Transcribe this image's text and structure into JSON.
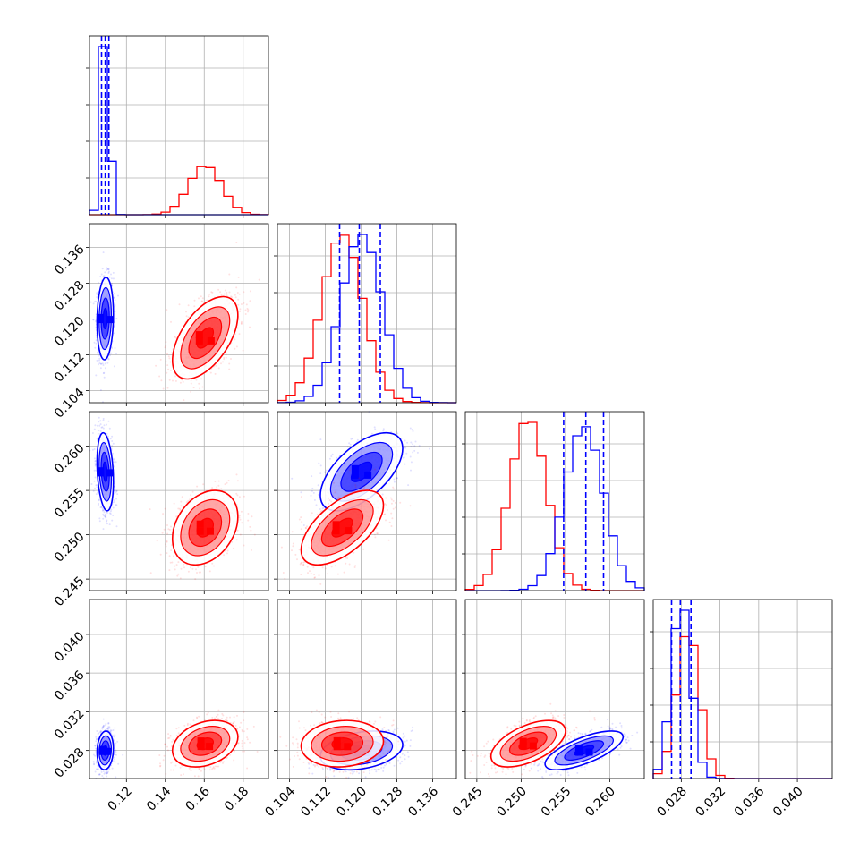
{
  "chart_data": {
    "type": "corner",
    "grid": true,
    "parameters": [
      {
        "ticks": [
          0.12,
          0.14,
          0.16,
          0.18
        ],
        "tick_labels": [
          "0.12",
          "0.14",
          "0.16",
          "0.18"
        ],
        "range": [
          0.101,
          0.193
        ]
      },
      {
        "ticks": [
          0.104,
          0.112,
          0.12,
          0.128,
          0.136
        ],
        "tick_labels": [
          "0.104",
          "0.112",
          "0.120",
          "0.128",
          "0.136"
        ],
        "range": [
          0.1013,
          0.1413
        ]
      },
      {
        "ticks": [
          0.245,
          0.25,
          0.255,
          0.26
        ],
        "tick_labels": [
          "0.245",
          "0.250",
          "0.255",
          "0.260"
        ],
        "range": [
          0.2437,
          0.2639
        ]
      },
      {
        "ticks": [
          0.028,
          0.032,
          0.036,
          0.04
        ],
        "tick_labels": [
          "0.028",
          "0.032",
          "0.036",
          "0.040"
        ],
        "range": [
          0.0251,
          0.0436
        ]
      }
    ],
    "series": [
      {
        "color": "#0000ff",
        "means": [
          0.1091,
          0.1201,
          0.2571,
          0.028
        ],
        "stds": [
          0.0021,
          0.0046,
          0.0022,
          0.001
        ],
        "correlations": [
          [
            0,
            1,
            0.1
          ],
          [
            0,
            2,
            -0.25
          ],
          [
            0,
            3,
            0.1
          ],
          [
            1,
            2,
            0.6
          ],
          [
            1,
            3,
            0.3
          ],
          [
            2,
            3,
            0.7
          ]
        ],
        "quantile_lines": [
          [
            0.1072,
            0.1091,
            0.111
          ],
          [
            0.1152,
            0.1196,
            0.1243
          ],
          [
            0.2548,
            0.2573,
            0.2593
          ],
          [
            0.027,
            0.0279,
            0.029
          ]
        ]
      },
      {
        "color": "#ff0000",
        "means": [
          0.1605,
          0.1158,
          0.2508,
          0.0287
        ],
        "stds": [
          0.0084,
          0.0046,
          0.0021,
          0.0012
        ],
        "correlations": [
          [
            0,
            1,
            0.55
          ],
          [
            0,
            2,
            0.3
          ],
          [
            0,
            3,
            0.3
          ],
          [
            1,
            2,
            0.6
          ],
          [
            1,
            3,
            0.1
          ],
          [
            2,
            3,
            0.55
          ]
        ],
        "quantile_lines": []
      }
    ]
  }
}
